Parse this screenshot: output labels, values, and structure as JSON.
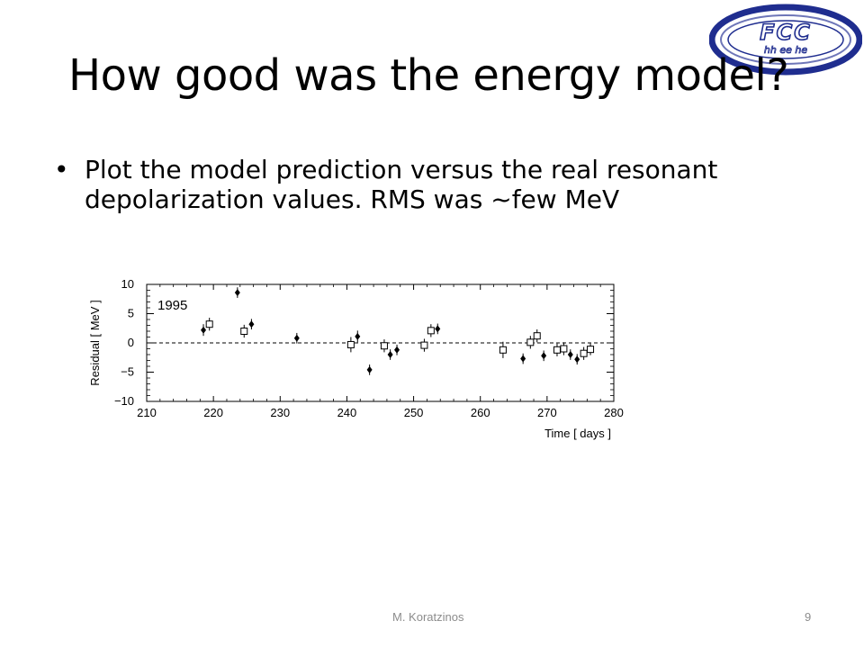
{
  "logo": {
    "line1": "FCC",
    "line2": "hh ee he"
  },
  "slide": {
    "title": "How good was the energy model?",
    "bullets": [
      "Plot the model prediction versus the real resonant depolarization values. RMS was ~few MeV"
    ]
  },
  "footer": {
    "author": "M. Koratzinos",
    "page": "9"
  },
  "chart_data": {
    "type": "scatter",
    "title": "",
    "annotation": "1995",
    "xlabel": "Time  [ days ]",
    "ylabel": "Residual  [ MeV ]",
    "xlim": [
      210,
      280
    ],
    "ylim": [
      -10,
      10
    ],
    "xticks": [
      "210",
      "220",
      "230",
      "240",
      "250",
      "260",
      "270",
      "280"
    ],
    "yticks": [
      "10",
      "5",
      "0",
      "−5",
      "−10"
    ],
    "reference_line": 0,
    "grid": false,
    "colors": {
      "axis": "#000000",
      "marker": "#000000"
    },
    "series": [
      {
        "marker": "filled-diamond",
        "points": [
          {
            "x": 218.5,
            "y": 2.2,
            "err": 1.0
          },
          {
            "x": 223.6,
            "y": 8.6,
            "err": 0.9
          },
          {
            "x": 225.7,
            "y": 3.2,
            "err": 0.9
          },
          {
            "x": 232.5,
            "y": 0.8,
            "err": 0.9
          },
          {
            "x": 241.6,
            "y": 1.1,
            "err": 1.0
          },
          {
            "x": 243.4,
            "y": -4.6,
            "err": 0.9
          },
          {
            "x": 246.5,
            "y": -2.0,
            "err": 0.9
          },
          {
            "x": 247.5,
            "y": -1.2,
            "err": 0.9
          },
          {
            "x": 253.6,
            "y": 2.4,
            "err": 0.9
          },
          {
            "x": 266.4,
            "y": -2.7,
            "err": 0.9
          },
          {
            "x": 269.5,
            "y": -2.2,
            "err": 0.9
          },
          {
            "x": 273.5,
            "y": -2.0,
            "err": 0.9
          },
          {
            "x": 274.5,
            "y": -2.8,
            "err": 0.9
          }
        ]
      },
      {
        "marker": "open-square",
        "points": [
          {
            "x": 219.4,
            "y": 3.2,
            "err": 1.1
          },
          {
            "x": 224.6,
            "y": 2.0,
            "err": 1.1
          },
          {
            "x": 240.6,
            "y": -0.3,
            "err": 1.3
          },
          {
            "x": 245.6,
            "y": -0.5,
            "err": 1.1
          },
          {
            "x": 251.6,
            "y": -0.4,
            "err": 1.1
          },
          {
            "x": 252.6,
            "y": 2.1,
            "err": 1.1
          },
          {
            "x": 263.4,
            "y": -1.2,
            "err": 1.4
          },
          {
            "x": 267.5,
            "y": 0.1,
            "err": 1.1
          },
          {
            "x": 268.5,
            "y": 1.2,
            "err": 1.1
          },
          {
            "x": 271.5,
            "y": -1.2,
            "err": 1.1
          },
          {
            "x": 272.5,
            "y": -1.0,
            "err": 1.1
          },
          {
            "x": 275.5,
            "y": -1.8,
            "err": 1.1
          },
          {
            "x": 276.5,
            "y": -1.1,
            "err": 1.0
          }
        ]
      }
    ]
  }
}
